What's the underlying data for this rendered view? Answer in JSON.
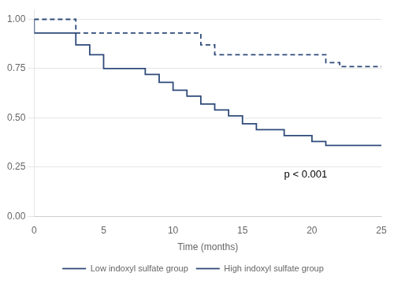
{
  "chart_data": {
    "type": "step",
    "xlabel": "Time (months)",
    "xlim": [
      0,
      25
    ],
    "ylim": [
      0,
      1.05
    ],
    "xticks": [
      0,
      5,
      10,
      15,
      20,
      25
    ],
    "yticks": [
      {
        "value": 0,
        "label": "0.00"
      },
      {
        "value": 0.25,
        "label": "0.25"
      },
      {
        "value": 0.5,
        "label": "0.50"
      },
      {
        "value": 0.75,
        "label": "0.75"
      },
      {
        "value": 1,
        "label": "1.00"
      }
    ],
    "grid": "y",
    "legend": "bottom",
    "series": [
      {
        "name": "Low indoxyl sulfate group",
        "color": "#2e4a7a",
        "line_style": "dashed",
        "x": [
          0,
          3,
          9,
          12,
          13,
          14,
          21,
          22,
          23,
          24,
          25
        ],
        "values": [
          1.0,
          1.0,
          0.93,
          0.93,
          0.87,
          0.82,
          0.82,
          0.78,
          0.76,
          0.76,
          0.76
        ]
      },
      {
        "name": "High indoxyl sulfate group",
        "color": "#2e4a7a",
        "line_style": "solid",
        "x": [
          0,
          3,
          4,
          5,
          8,
          9,
          10,
          11,
          12,
          13,
          14,
          15,
          16,
          18,
          20,
          21,
          22,
          23,
          24,
          25
        ],
        "values": [
          1.0,
          0.93,
          0.87,
          0.82,
          0.75,
          0.72,
          0.68,
          0.64,
          0.61,
          0.57,
          0.54,
          0.51,
          0.47,
          0.44,
          0.41,
          0.38,
          0.36,
          0.36,
          0.36,
          0.36
        ]
      }
    ],
    "annotations": [
      {
        "text": "p < 0.001",
        "x": 18.0,
        "y": 0.21
      }
    ]
  }
}
